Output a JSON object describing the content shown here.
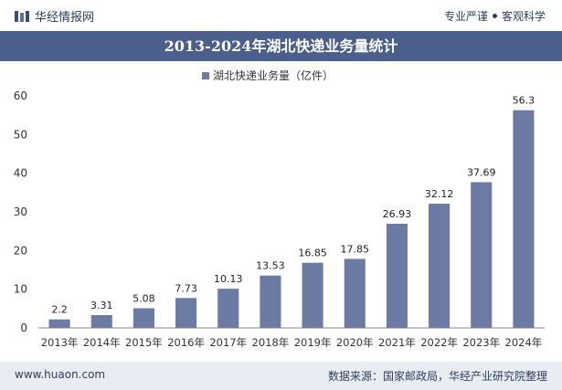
{
  "header": {
    "brand": "华经情报网",
    "tag_left": "专业严谨",
    "tag_right": "客观科学"
  },
  "title": "2013-2024年湖北快递业务量统计",
  "footer": {
    "url": "www.huaon.com",
    "source": "数据来源：国家邮政局，华经产业研究院整理"
  },
  "colors": {
    "bar": "#6b7ba3",
    "title_bg": "#4a5f8c",
    "footer_bg": "#e9ecf2"
  },
  "chart_data": {
    "type": "bar",
    "legend": "湖北快递业务量（亿件）",
    "legend_position": "top-center",
    "categories": [
      "2013年",
      "2014年",
      "2015年",
      "2016年",
      "2017年",
      "2018年",
      "2019年",
      "2020年",
      "2021年",
      "2022年",
      "2023年",
      "2024年"
    ],
    "values": [
      2.2,
      3.31,
      5.08,
      7.73,
      10.13,
      13.53,
      16.85,
      17.85,
      26.93,
      32.12,
      37.69,
      56.3
    ],
    "value_labels": [
      "2.2",
      "3.31",
      "5.08",
      "7.73",
      "10.13",
      "13.53",
      "16.85",
      "17.85",
      "26.93",
      "32.12",
      "37.69",
      "56.3"
    ],
    "ylim": [
      0,
      60
    ],
    "yticks": [
      0,
      10,
      20,
      30,
      40,
      50,
      60
    ],
    "grid": false
  }
}
